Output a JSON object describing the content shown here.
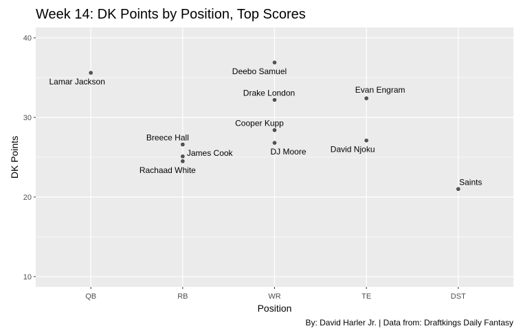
{
  "chart_data": {
    "type": "scatter",
    "title": "Week 14: DK Points by Position, Top Scores",
    "xlabel": "Position",
    "ylabel": "DK Points",
    "caption": "By: David Harler Jr. | Data from: Draftkings Daily Fantasy",
    "categories": [
      "QB",
      "RB",
      "WR",
      "TE",
      "DST"
    ],
    "ylim": [
      8.7,
      41.3
    ],
    "yticks": [
      10,
      20,
      30,
      40
    ],
    "grid": true,
    "legend": "none",
    "point_color": "#595959",
    "panel_color": "#ebebeb",
    "points": [
      {
        "name": "Lamar Jackson",
        "x": "QB",
        "y": 35.6
      },
      {
        "name": "Breece Hall",
        "x": "RB",
        "y": 26.6
      },
      {
        "name": "James Cook",
        "x": "RB",
        "y": 25.1
      },
      {
        "name": "Rachaad White",
        "x": "RB",
        "y": 24.5
      },
      {
        "name": "Deebo Samuel",
        "x": "WR",
        "y": 36.9
      },
      {
        "name": "Drake London",
        "x": "WR",
        "y": 32.2
      },
      {
        "name": "Cooper Kupp",
        "x": "WR",
        "y": 28.4
      },
      {
        "name": "DJ Moore",
        "x": "WR",
        "y": 26.8
      },
      {
        "name": "Evan Engram",
        "x": "TE",
        "y": 32.4
      },
      {
        "name": "David Njoku",
        "x": "TE",
        "y": 27.1
      },
      {
        "name": "Saints",
        "x": "DST",
        "y": 21.0
      }
    ]
  }
}
